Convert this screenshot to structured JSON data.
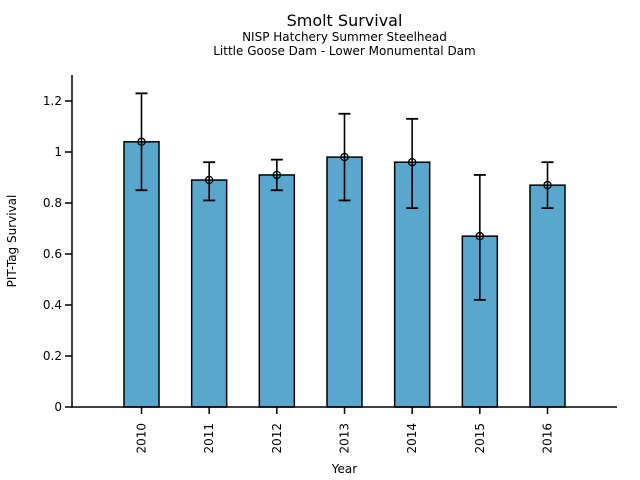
{
  "header": {
    "title": "Smolt Survival",
    "subtitle1": "NISP Hatchery Summer Steelhead",
    "subtitle2": "Little Goose Dam - Lower Monumental Dam"
  },
  "chart_data": {
    "type": "bar",
    "title": "Smolt Survival",
    "subtitle": [
      "NISP Hatchery Summer Steelhead",
      "Little Goose Dam - Lower Monumental Dam"
    ],
    "xlabel": "Year",
    "ylabel": "PIT-Tag Survival",
    "categories": [
      "2010",
      "2011",
      "2012",
      "2013",
      "2014",
      "2015",
      "2016"
    ],
    "series": [
      {
        "name": "PIT-Tag Survival",
        "values": [
          1.04,
          0.89,
          0.91,
          0.98,
          0.96,
          0.67,
          0.87
        ],
        "error_low": [
          0.85,
          0.81,
          0.85,
          0.81,
          0.78,
          0.42,
          0.78
        ],
        "error_high": [
          1.23,
          0.96,
          0.97,
          1.15,
          1.13,
          0.91,
          0.96
        ]
      }
    ],
    "y_ticks": [
      0,
      0.2,
      0.4,
      0.6,
      0.8,
      1,
      1.2
    ],
    "y_tick_labels": [
      "0",
      "0.2",
      "0.4",
      "0.6",
      "0.8",
      "1",
      "1.2"
    ],
    "ylim": [
      0,
      1.3
    ],
    "grid": false,
    "legend_position": "none",
    "marker": "open-circle",
    "error_bars": true,
    "colors": {
      "bar_fill": "#5AA7CE",
      "bar_edge": "#000000",
      "axis": "#000000",
      "text": "#000000",
      "background": "#ffffff"
    }
  }
}
